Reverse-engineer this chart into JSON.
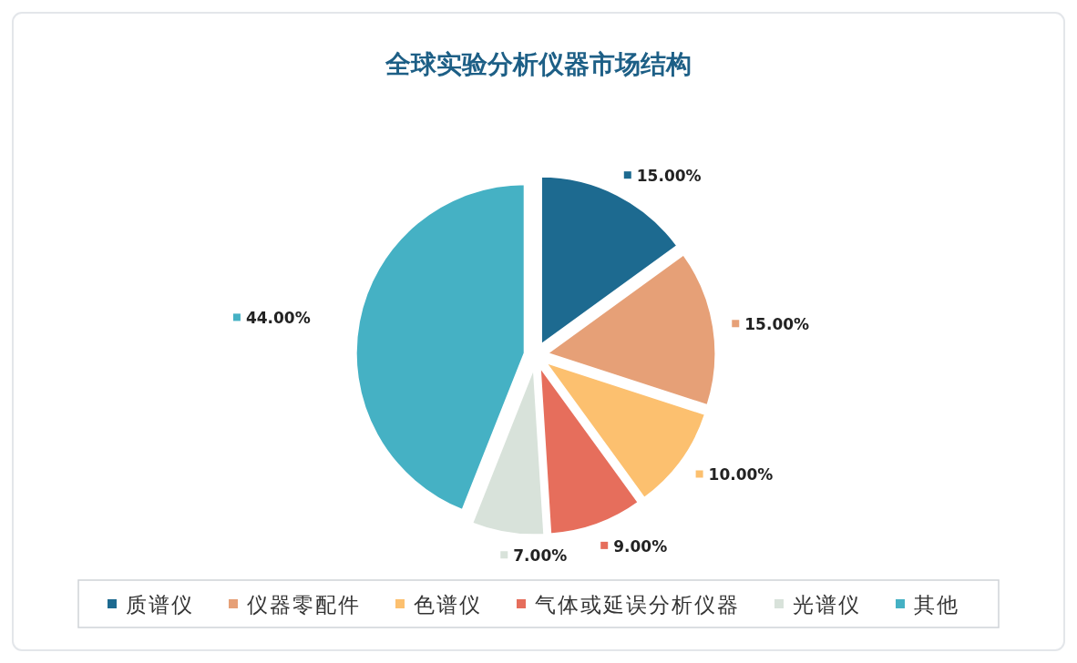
{
  "chart_data": {
    "type": "pie",
    "title": "全球实验分析仪器市场结构",
    "categories": [
      "质谱仪",
      "仪器零配件",
      "色谱仪",
      "气体或延误分析仪器",
      "光谱仪",
      "其他"
    ],
    "values": [
      15,
      15,
      10,
      9,
      7,
      44
    ],
    "value_labels": [
      "15.00%",
      "15.00%",
      "10.00%",
      "9.00%",
      "7.00%",
      "44.00%"
    ],
    "colors": [
      "#1d6a90",
      "#e6a077",
      "#fcc06f",
      "#e66e5c",
      "#d8e2da",
      "#45b1c4"
    ],
    "legend": "bottom"
  }
}
